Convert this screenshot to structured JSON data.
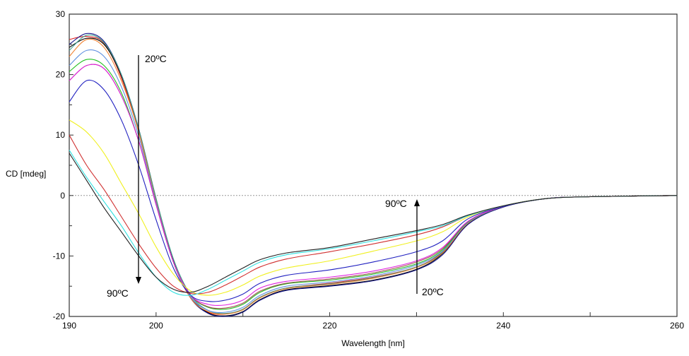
{
  "chart_data": {
    "type": "line",
    "title": "",
    "xlabel": "Wavelength [nm]",
    "ylabel": "CD [mdeg]",
    "xlim": [
      190,
      260
    ],
    "ylim": [
      -20,
      30
    ],
    "xticks": [
      190,
      200,
      220,
      240,
      260
    ],
    "yticks": [
      30,
      20,
      10,
      0,
      -10,
      -20
    ],
    "zero_line": "dashed",
    "grid": false,
    "annotations": {
      "left_top": "20ºC",
      "left_bottom": "90ºC",
      "right_top": "90ºC",
      "right_bottom": "20ºC"
    },
    "x": [
      190,
      192,
      194,
      196,
      198,
      200,
      202,
      204,
      206,
      208,
      210,
      212,
      215,
      220,
      225,
      230,
      233,
      236,
      240,
      245,
      250,
      260
    ],
    "series": [
      {
        "color": "#e02020",
        "values": [
          25.8,
          26.3,
          25.2,
          19.5,
          10.5,
          -1,
          -11,
          -17,
          -19.3,
          -19.6,
          -18.8,
          -16.8,
          -15.3,
          -14.5,
          -13.5,
          -11.8,
          -9.3,
          -4.5,
          -1.8,
          -0.5,
          -0.2,
          0
        ]
      },
      {
        "color": "#000000",
        "values": [
          24.5,
          26,
          25,
          19.8,
          11,
          -0.5,
          -10.8,
          -16.8,
          -19.4,
          -19.9,
          -19.2,
          -17.2,
          -15.6,
          -14.9,
          -14,
          -12.2,
          -9.6,
          -4.6,
          -1.9,
          -0.5,
          -0.2,
          0
        ]
      },
      {
        "color": "#1a1a8c",
        "values": [
          25,
          26.8,
          25.5,
          20,
          11,
          -0.8,
          -11,
          -17,
          -19.5,
          -20,
          -19.3,
          -17.3,
          -15.7,
          -15,
          -14.1,
          -12.3,
          -9.8,
          -4.7,
          -1.9,
          -0.5,
          -0.2,
          0
        ]
      },
      {
        "color": "#40a090",
        "values": [
          24,
          26.5,
          25.3,
          20,
          11,
          -0.5,
          -10.5,
          -16.5,
          -19,
          -19.5,
          -18.8,
          -16.8,
          -15.3,
          -14.6,
          -13.6,
          -11.8,
          -9.4,
          -4.5,
          -1.8,
          -0.5,
          -0.2,
          0
        ]
      },
      {
        "color": "#f08030",
        "values": [
          23,
          25.8,
          24.5,
          19,
          10.5,
          -1,
          -11,
          -17,
          -19.2,
          -19.6,
          -18.9,
          -16.9,
          -15.4,
          -14.7,
          -13.7,
          -11.9,
          -9.5,
          -4.5,
          -1.8,
          -0.5,
          -0.2,
          0
        ]
      },
      {
        "color": "#6090e0",
        "values": [
          21.5,
          24,
          23,
          18,
          9.8,
          -1.2,
          -11,
          -16.8,
          -19,
          -19.3,
          -18.5,
          -16.5,
          -15,
          -14.3,
          -13.3,
          -11.5,
          -9.2,
          -4.4,
          -1.8,
          -0.5,
          -0.2,
          0
        ]
      },
      {
        "color": "#20c020",
        "values": [
          20.5,
          22.5,
          21.5,
          17,
          9,
          -1.5,
          -11,
          -16.5,
          -18.5,
          -18.8,
          -18,
          -16,
          -14.6,
          -14,
          -13,
          -11.3,
          -9,
          -4.3,
          -1.8,
          -0.5,
          -0.2,
          0
        ]
      },
      {
        "color": "#a05050",
        "values": [
          19,
          21.5,
          21,
          16.5,
          9,
          -1.5,
          -11,
          -16.5,
          -18.4,
          -18.6,
          -17.8,
          -15.8,
          -14.5,
          -13.8,
          -12.8,
          -11,
          -8.8,
          -4.2,
          -1.8,
          -0.5,
          -0.2,
          0
        ]
      },
      {
        "color": "#e020e0",
        "values": [
          19,
          21.5,
          21,
          16.5,
          9,
          -1.5,
          -11,
          -16.5,
          -18,
          -18.1,
          -17.3,
          -15.3,
          -14.2,
          -13.5,
          -12.5,
          -10.8,
          -8.6,
          -4.2,
          -1.8,
          -0.5,
          -0.2,
          0
        ]
      },
      {
        "color": "#2020c0",
        "values": [
          15.5,
          19,
          17.5,
          12.5,
          5,
          -4,
          -12,
          -16.5,
          -17.5,
          -17.3,
          -16.3,
          -14.5,
          -13.2,
          -12.3,
          -11,
          -9.3,
          -7.5,
          -3.8,
          -1.8,
          -0.5,
          -0.2,
          0
        ]
      },
      {
        "color": "#f0f020",
        "values": [
          12.5,
          10.5,
          7,
          2,
          -3,
          -8.5,
          -13,
          -15.8,
          -16.5,
          -16,
          -14.8,
          -13.3,
          -12,
          -10.8,
          -9.2,
          -7.5,
          -6,
          -3.5,
          -1.7,
          -0.5,
          -0.2,
          0
        ]
      },
      {
        "color": "#d03030",
        "values": [
          10,
          5,
          1,
          -3.5,
          -8,
          -12,
          -15,
          -16.2,
          -16,
          -14.8,
          -13.3,
          -11.8,
          -10.5,
          -9.3,
          -8,
          -6.5,
          -5.2,
          -3.3,
          -1.7,
          -0.5,
          -0.2,
          0
        ]
      },
      {
        "color": "#30e0e0",
        "values": [
          7.5,
          3,
          -1,
          -5,
          -9.5,
          -13.5,
          -16,
          -16.5,
          -15.5,
          -14,
          -12.5,
          -11,
          -9.8,
          -8.8,
          -7.5,
          -6,
          -5,
          -3.3,
          -1.7,
          -0.5,
          -0.2,
          0
        ]
      },
      {
        "color": "#202020",
        "values": [
          7,
          2.5,
          -2,
          -6,
          -10,
          -13.5,
          -15.5,
          -16,
          -15,
          -13.5,
          -12,
          -10.6,
          -9.5,
          -8.6,
          -7.2,
          -5.8,
          -4.8,
          -3.2,
          -1.7,
          -0.5,
          -0.2,
          0
        ]
      }
    ]
  }
}
